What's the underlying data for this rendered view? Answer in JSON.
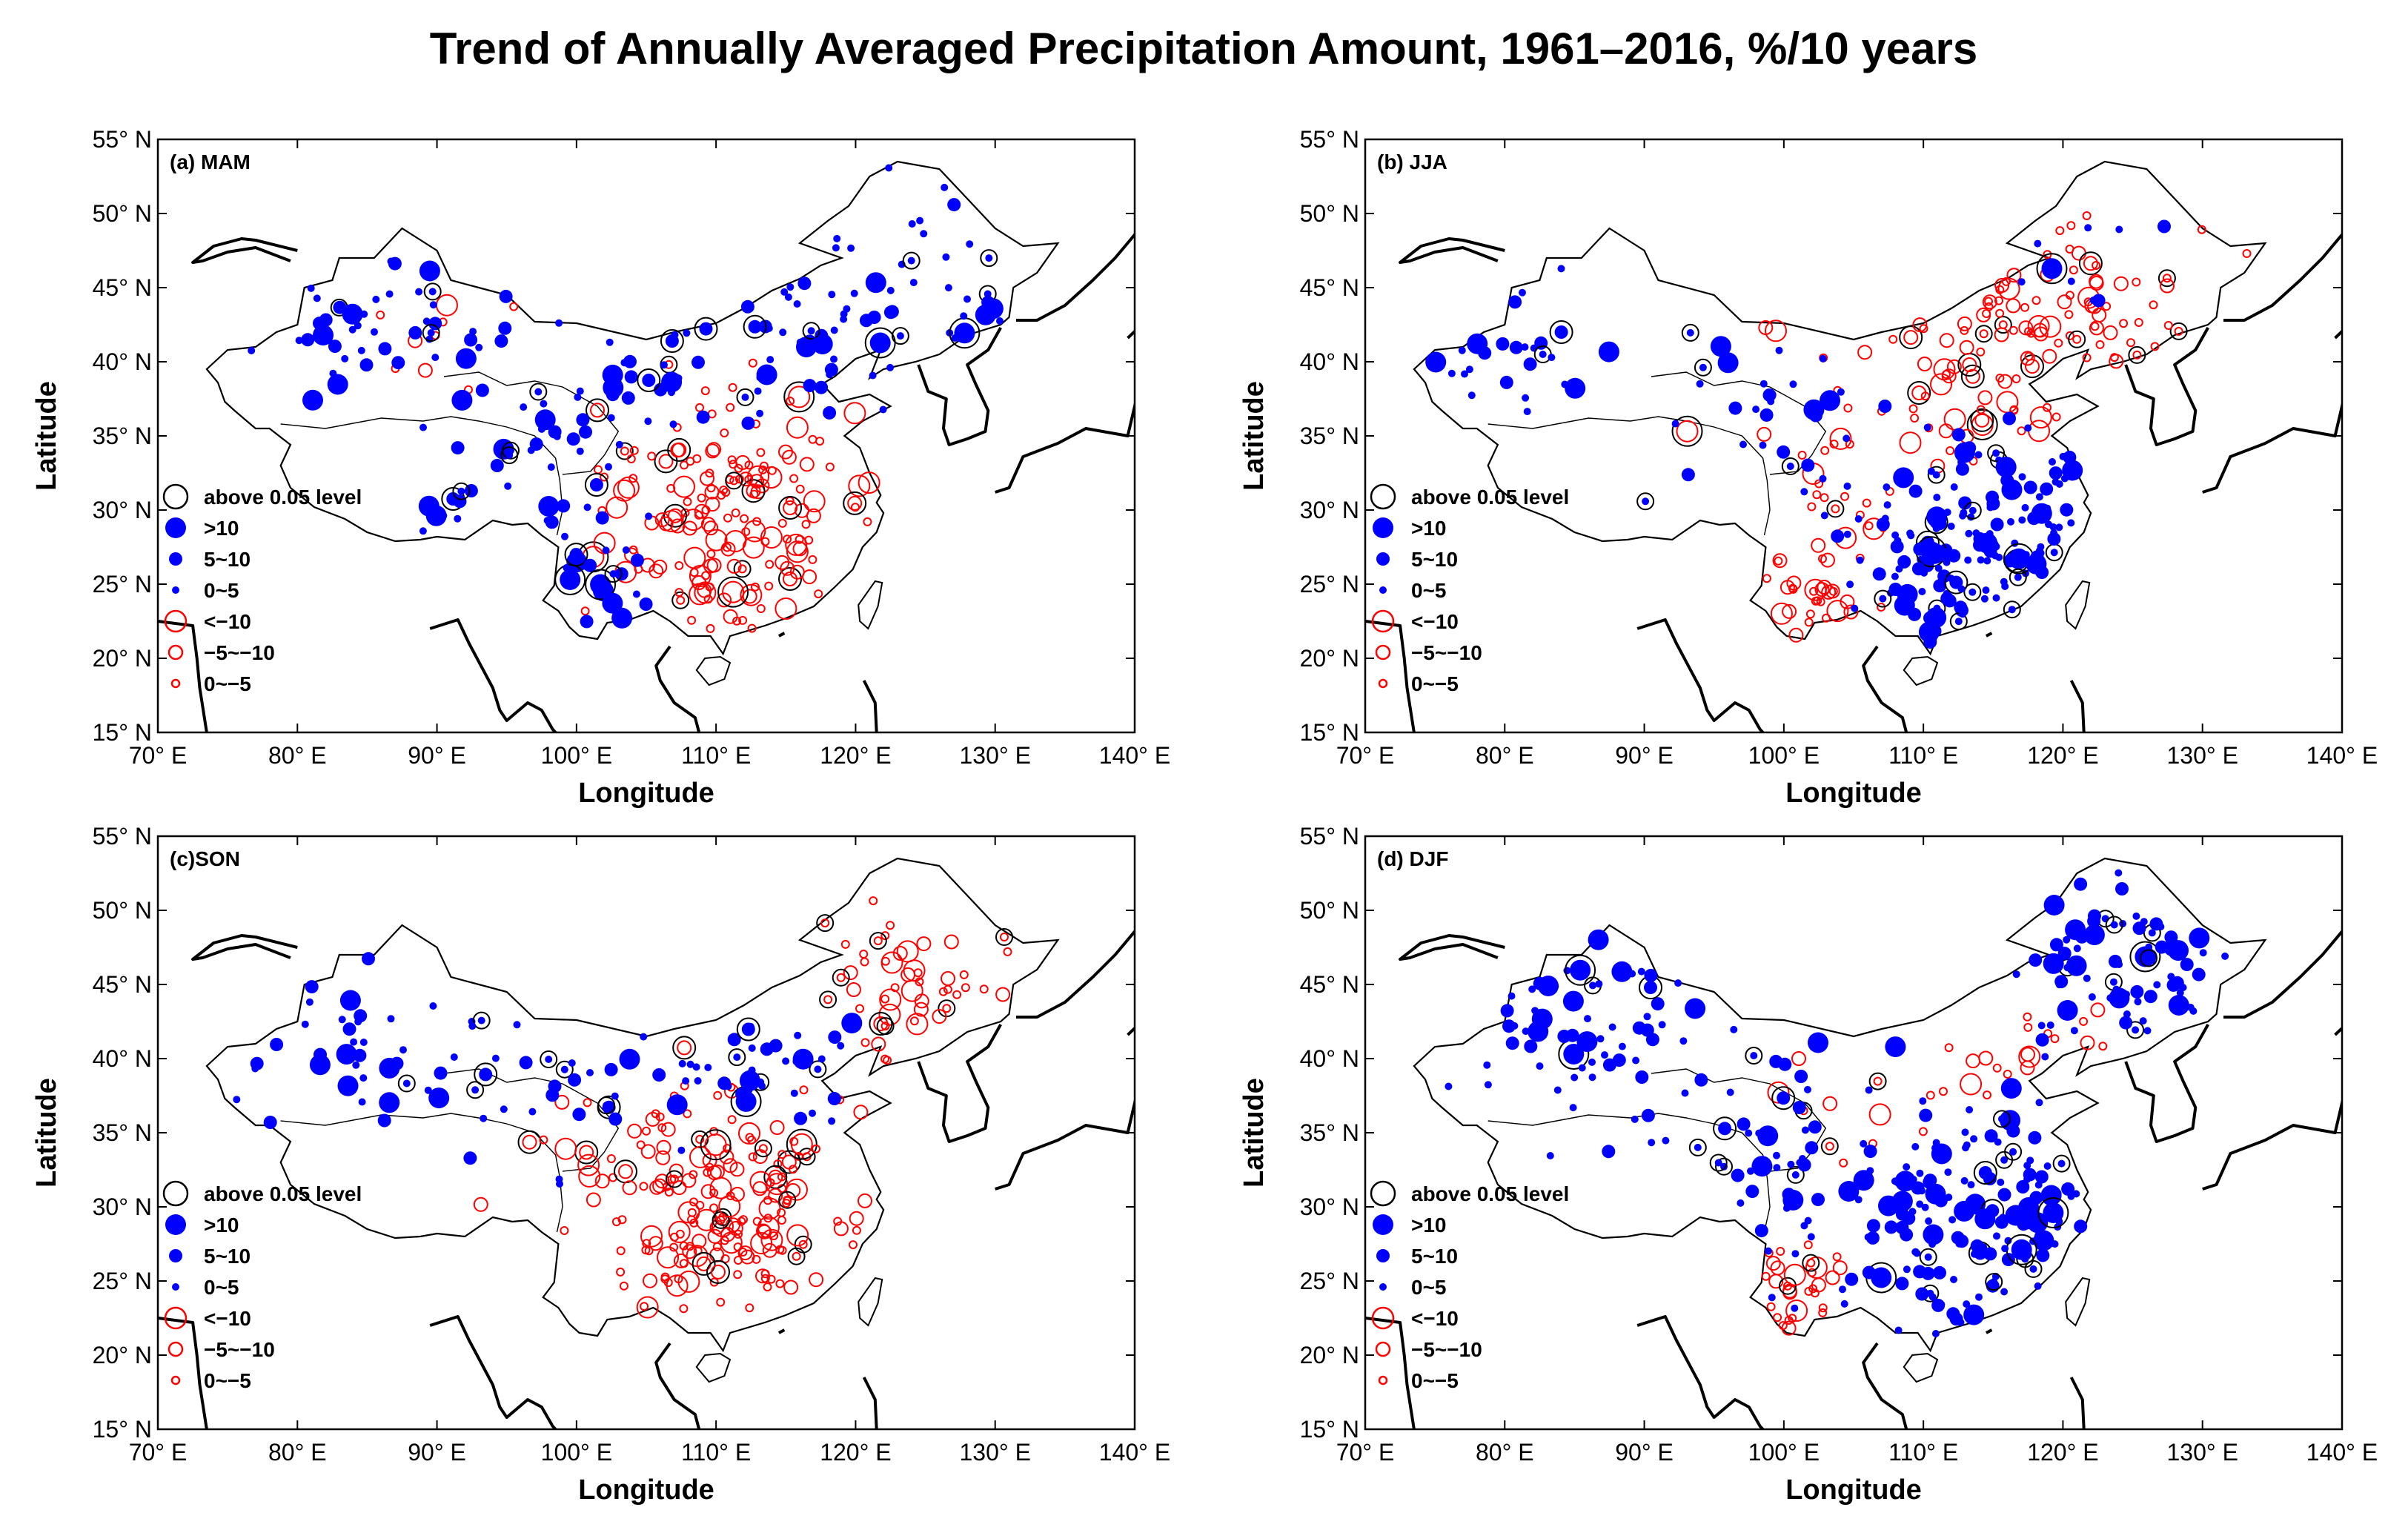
{
  "figure": {
    "title": "Trend of Annually Averaged Precipitation Amount, 1961–2016, %/10 years",
    "xlabel": "Longitude",
    "ylabel": "Latitude",
    "x_ticks": [
      "70° E",
      "80° E",
      "90° E",
      "100° E",
      "110° E",
      "120° E",
      "130° E",
      "140° E"
    ],
    "y_ticks": [
      "15° N",
      "20° N",
      "25° N",
      "30° N",
      "35° N",
      "40° N",
      "45° N",
      "50° N",
      "55° N"
    ],
    "legend": {
      "significance": "above 0.05 level",
      "pos_large": ">10",
      "pos_mid": "5~10",
      "pos_small": "0~5",
      "neg_large": "<−10",
      "neg_mid": "−5~−10",
      "neg_small": "0~−5"
    },
    "colors": {
      "positive": "#0000ff",
      "negative": "#ff0000",
      "significance": "#000000",
      "map_line": "#000000"
    }
  },
  "panels": [
    {
      "id": "a",
      "label": "(a) MAM",
      "season": "MAM"
    },
    {
      "id": "b",
      "label": "(b) JJA",
      "season": "JJA"
    },
    {
      "id": "c",
      "label": "(c)SON",
      "season": "SON"
    },
    {
      "id": "d",
      "label": "(d) DJF",
      "season": "DJF"
    }
  ],
  "chart_data": {
    "type": "scatter",
    "x_range": [
      70,
      140
    ],
    "y_range": [
      15,
      55
    ],
    "x_unit": "degrees E longitude",
    "y_unit": "degrees N latitude",
    "maps": [
      {
        "panel": "a",
        "positive_clusters": [
          {
            "lon": 86,
            "lat": 43,
            "sx": 5,
            "sy": 3,
            "n": 40
          },
          {
            "lon": 97,
            "lat": 36,
            "sx": 5,
            "sy": 4,
            "n": 45
          },
          {
            "lon": 101,
            "lat": 26,
            "sx": 2,
            "sy": 2,
            "n": 25
          },
          {
            "lon": 118,
            "lat": 43,
            "sx": 9,
            "sy": 4,
            "n": 90
          },
          {
            "lon": 90,
            "lat": 30,
            "sx": 1.5,
            "sy": 2,
            "n": 8
          }
        ],
        "negative_clusters": [
          {
            "lon": 111,
            "lat": 29,
            "sx": 5,
            "sy": 4,
            "n": 170
          },
          {
            "lon": 87,
            "lat": 42,
            "sx": 6,
            "sy": 2,
            "n": 10
          }
        ]
      },
      {
        "panel": "b",
        "positive_clusters": [
          {
            "lon": 80,
            "lat": 41,
            "sx": 4,
            "sy": 3,
            "n": 30
          },
          {
            "lon": 98,
            "lat": 37,
            "sx": 4,
            "sy": 3,
            "n": 25
          },
          {
            "lon": 115,
            "lat": 27,
            "sx": 6,
            "sy": 4,
            "n": 170
          },
          {
            "lon": 120,
            "lat": 48,
            "sx": 4,
            "sy": 3,
            "n": 10
          }
        ],
        "negative_clusters": [
          {
            "lon": 118,
            "lat": 41,
            "sx": 8,
            "sy": 4,
            "n": 130
          },
          {
            "lon": 102,
            "lat": 24,
            "sx": 2.5,
            "sy": 2,
            "n": 30
          },
          {
            "lon": 105,
            "lat": 31,
            "sx": 3,
            "sy": 3,
            "n": 20
          }
        ]
      },
      {
        "panel": "c",
        "positive_clusters": [
          {
            "lon": 84,
            "lat": 41,
            "sx": 6,
            "sy": 3,
            "n": 40
          },
          {
            "lon": 98,
            "lat": 38,
            "sx": 5,
            "sy": 3,
            "n": 25
          },
          {
            "lon": 114,
            "lat": 40,
            "sx": 5,
            "sy": 2,
            "n": 40
          }
        ],
        "negative_clusters": [
          {
            "lon": 110,
            "lat": 30,
            "sx": 5,
            "sy": 4,
            "n": 200
          },
          {
            "lon": 124,
            "lat": 45,
            "sx": 4,
            "sy": 3,
            "n": 50
          }
        ]
      },
      {
        "panel": "d",
        "positive_clusters": [
          {
            "lon": 85,
            "lat": 43,
            "sx": 5,
            "sy": 3,
            "n": 60
          },
          {
            "lon": 98,
            "lat": 36,
            "sx": 4,
            "sy": 4,
            "n": 45
          },
          {
            "lon": 124,
            "lat": 47,
            "sx": 5,
            "sy": 3,
            "n": 80
          },
          {
            "lon": 114,
            "lat": 29,
            "sx": 6,
            "sy": 4,
            "n": 170
          }
        ],
        "negative_clusters": [
          {
            "lon": 101,
            "lat": 24,
            "sx": 2.5,
            "sy": 2,
            "n": 30
          },
          {
            "lon": 118,
            "lat": 40,
            "sx": 4,
            "sy": 2,
            "n": 20
          },
          {
            "lon": 104,
            "lat": 36,
            "sx": 3,
            "sy": 2,
            "n": 10
          }
        ]
      }
    ]
  }
}
